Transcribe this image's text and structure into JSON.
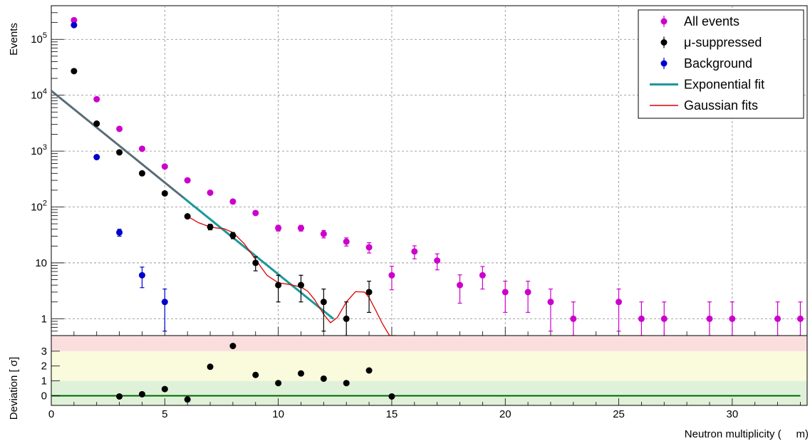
{
  "colors": {
    "all_events": "#cc00cc",
    "mu_suppressed": "#000000",
    "background": "#0000cc",
    "exp_fit": "#1a9999",
    "gauss_fit": "#e00000",
    "band_1": "#dff2d9",
    "band_2": "#fafadc",
    "band_3": "#fadede",
    "zero_line": "#006600"
  },
  "chart_data": [
    {
      "type": "scatter",
      "yscale": "log",
      "ylabel": "Events",
      "xlim": [
        0,
        33.3
      ],
      "ylim": [
        0.5,
        400000
      ],
      "grid": true,
      "legend_position": "top-right",
      "ytick_labels": [
        "1",
        "10",
        "10^2",
        "10^3",
        "10^4",
        "10^5"
      ],
      "series": [
        {
          "name": "All events",
          "color_key": "all_events",
          "x": [
            1,
            2,
            3,
            4,
            5,
            6,
            7,
            8,
            9,
            10,
            11,
            12,
            13,
            14,
            15,
            16,
            17,
            18,
            19,
            20,
            21,
            22,
            23,
            25,
            26,
            27,
            29,
            30,
            32,
            33
          ],
          "y": [
            220000,
            8500,
            2500,
            1100,
            530,
            300,
            180,
            125,
            78,
            42,
            42,
            33,
            24,
            19,
            6,
            16,
            11,
            4,
            6,
            3,
            3,
            2,
            1,
            2,
            1,
            1,
            1,
            1,
            1,
            1
          ],
          "err_lo": [
            0,
            0,
            0,
            0,
            0,
            0,
            0,
            0,
            0,
            5,
            5,
            5,
            4,
            4,
            2.7,
            4.2,
            3.5,
            2.1,
            2.6,
            1.7,
            1.7,
            1.4,
            0.8,
            1.4,
            0.8,
            0.8,
            0.8,
            0.8,
            0.8,
            0.8
          ],
          "err_hi": [
            0,
            0,
            0,
            0,
            0,
            0,
            0,
            0,
            0,
            5,
            5,
            5,
            4,
            4,
            2.7,
            4.2,
            3.5,
            2.1,
            2.6,
            1.7,
            1.7,
            1.4,
            1.0,
            1.4,
            1.0,
            1.0,
            1.0,
            1.0,
            1.0,
            1.0
          ]
        },
        {
          "name": "μ-suppressed",
          "color_key": "mu_suppressed",
          "x": [
            1,
            2,
            3,
            4,
            5,
            6,
            7,
            8,
            9,
            10,
            11,
            12,
            13,
            14
          ],
          "y": [
            27000,
            3100,
            950,
            400,
            175,
            68,
            44,
            31,
            10,
            4,
            4,
            2,
            1,
            3
          ],
          "err_lo": [
            0,
            0,
            0,
            0,
            0,
            0,
            5,
            4,
            2.8,
            2.0,
            2.0,
            1.4,
            0.8,
            1.7
          ],
          "err_hi": [
            0,
            0,
            0,
            0,
            0,
            0,
            5,
            4,
            2.8,
            2.0,
            2.0,
            1.4,
            1.0,
            1.7
          ]
        },
        {
          "name": "Background",
          "color_key": "background",
          "x": [
            1,
            2,
            3,
            4,
            5
          ],
          "y": [
            180000,
            780,
            35,
            6,
            2
          ],
          "err_lo": [
            0,
            0,
            5,
            2.4,
            1.4
          ],
          "err_hi": [
            0,
            0,
            5,
            2.4,
            1.4
          ]
        }
      ],
      "fits": [
        {
          "name": "Exponential fit",
          "color_key": "exp_fit",
          "function": "exponential",
          "x_range": [
            0,
            12.43
          ],
          "y_at_0": 12000,
          "slope_per_unit": -0.756
        },
        {
          "name": "Gaussian fits",
          "color_key": "gauss_fit",
          "x": [
            6,
            6.5,
            7,
            7.3,
            7.6,
            8,
            8.5,
            9,
            9.5,
            10,
            10.5,
            11,
            11.3,
            11.6,
            12,
            12.3,
            12.6,
            13,
            13.4,
            13.8,
            14,
            14.3,
            14.6,
            14.9,
            15.1,
            15.2
          ],
          "y": [
            68,
            52,
            44,
            42,
            41,
            35,
            22,
            11.5,
            6,
            4.4,
            4.1,
            3.7,
            3.1,
            2.2,
            1.2,
            0.85,
            1.05,
            2.0,
            3.05,
            3.0,
            2.4,
            1.4,
            0.8,
            0.45,
            0.2,
            0.12
          ]
        }
      ]
    },
    {
      "type": "scatter",
      "ylabel": "Deviation [ σ]",
      "xlabel": "Neutron multiplicity (     m)",
      "xlim": [
        0,
        33.3
      ],
      "ylim": [
        -0.65,
        4.05
      ],
      "yticks": [
        0,
        1,
        2,
        3
      ],
      "xticks": [
        0,
        5,
        10,
        15,
        20,
        25,
        30
      ],
      "bands": [
        {
          "from": -0.65,
          "to": 1,
          "color_key": "band_1"
        },
        {
          "from": 1,
          "to": 3,
          "color_key": "band_2"
        },
        {
          "from": 3,
          "to": 4.05,
          "color_key": "band_3"
        }
      ],
      "series": [
        {
          "name": "",
          "color_key": "mu_suppressed",
          "x": [
            3,
            4,
            5,
            6,
            7,
            8,
            9,
            10,
            11,
            12,
            13,
            14,
            15
          ],
          "y": [
            -0.05,
            0.1,
            0.45,
            -0.25,
            1.95,
            3.35,
            1.4,
            0.85,
            1.5,
            1.15,
            0.85,
            1.7,
            -0.05
          ]
        }
      ],
      "reference_line": {
        "y": 0,
        "color_key": "zero_line"
      }
    }
  ]
}
